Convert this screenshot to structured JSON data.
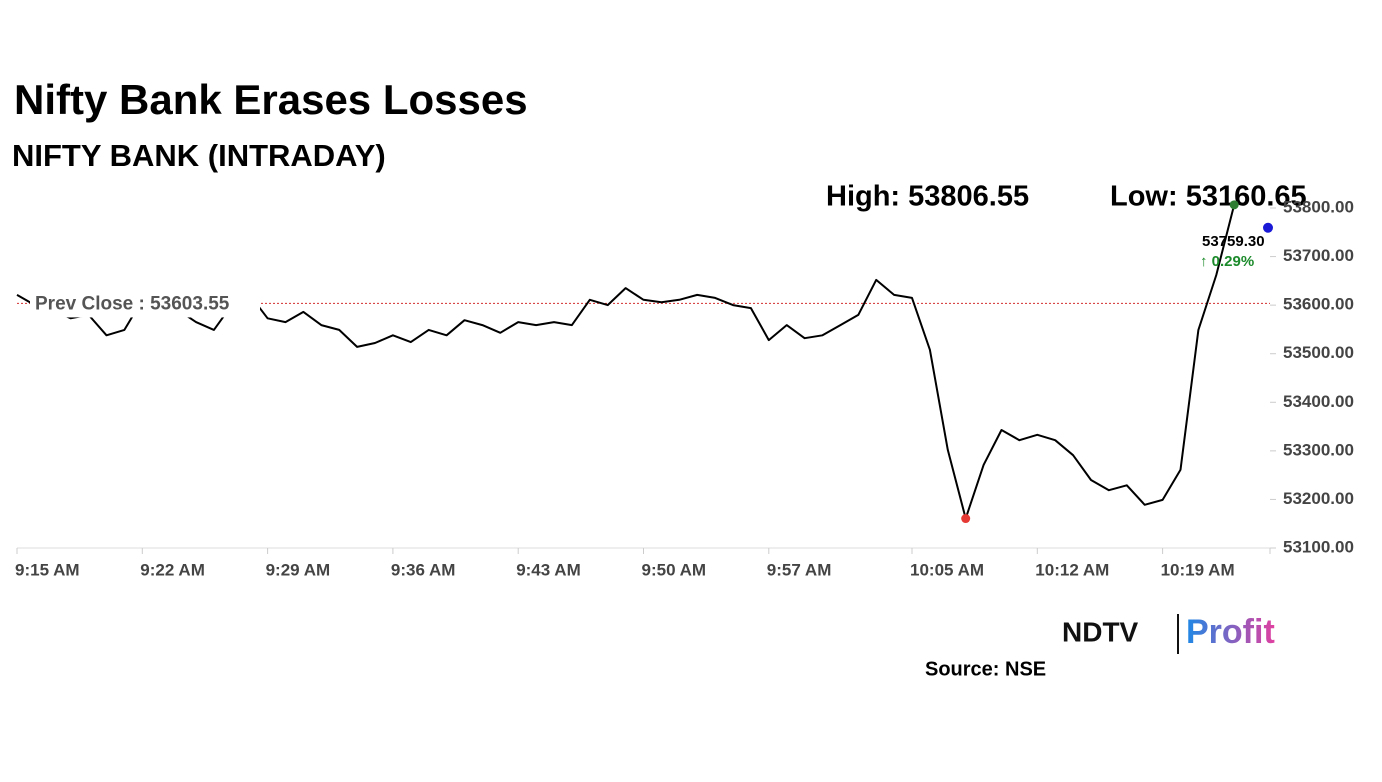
{
  "chart_data": {
    "type": "line",
    "title": "Nifty Bank Erases Losses",
    "subtitle": "NIFTY BANK (INTRADAY)",
    "high_label": "High: 53806.55",
    "low_label": "Low: 53160.65",
    "prev_close": {
      "value": 53603.55,
      "label": "Prev Close : 53603.55"
    },
    "last": {
      "value": 53759.3,
      "label": "53759.30"
    },
    "change_label": "↑ 0.29%",
    "source": "Source: NSE",
    "brand": [
      "NDTV",
      "Profit"
    ],
    "categories": [
      "9:15 AM",
      null,
      null,
      null,
      null,
      null,
      null,
      "9:22 AM",
      null,
      null,
      null,
      null,
      null,
      null,
      "9:29 AM",
      null,
      null,
      null,
      null,
      null,
      null,
      "9:36 AM",
      null,
      null,
      null,
      null,
      null,
      null,
      "9:43 AM",
      null,
      null,
      null,
      null,
      null,
      null,
      "9:50 AM",
      null,
      null,
      null,
      null,
      null,
      null,
      "9:57 AM",
      null,
      null,
      null,
      null,
      null,
      null,
      null,
      "10:05 AM",
      null,
      null,
      null,
      null,
      null,
      null,
      "10:12 AM",
      null,
      null,
      null,
      null,
      null,
      null,
      "10:19 AM",
      null,
      null,
      null,
      null,
      null,
      null
    ],
    "series": [
      {
        "name": "NIFTY BANK",
        "color": "#000000",
        "values": [
          53621,
          53600,
          53590,
          53573,
          53580,
          53538,
          53549,
          53611,
          53611,
          53590,
          53565,
          53549,
          53600,
          53621,
          53573,
          53565,
          53586,
          53559,
          53549,
          53514,
          53522,
          53538,
          53524,
          53549,
          53538,
          53569,
          53559,
          53543,
          53565,
          53559,
          53565,
          53559,
          53611,
          53600,
          53635,
          53611,
          53606,
          53611,
          53621,
          53615,
          53600,
          53594,
          53528,
          53559,
          53532,
          53538,
          53559,
          53580,
          53652,
          53621,
          53615,
          53508,
          53302,
          53160.65,
          53271,
          53343,
          53322,
          53333,
          53322,
          53291,
          53240,
          53219,
          53229,
          53189,
          53199,
          53261,
          53549,
          53662,
          53806.55,
          null,
          null
        ]
      }
    ],
    "ylim": [
      53100,
      53800
    ],
    "yticks": [
      {
        "value": 53100,
        "label": "53100.00"
      },
      {
        "value": 53200,
        "label": "53200.00"
      },
      {
        "value": 53300,
        "label": "53300.00"
      },
      {
        "value": 53400,
        "label": "53400.00"
      },
      {
        "value": 53500,
        "label": "53500.00"
      },
      {
        "value": 53600,
        "label": "53600.00"
      },
      {
        "value": 53700,
        "label": "53700.00"
      },
      {
        "value": 53800,
        "label": "53800.00"
      }
    ]
  }
}
